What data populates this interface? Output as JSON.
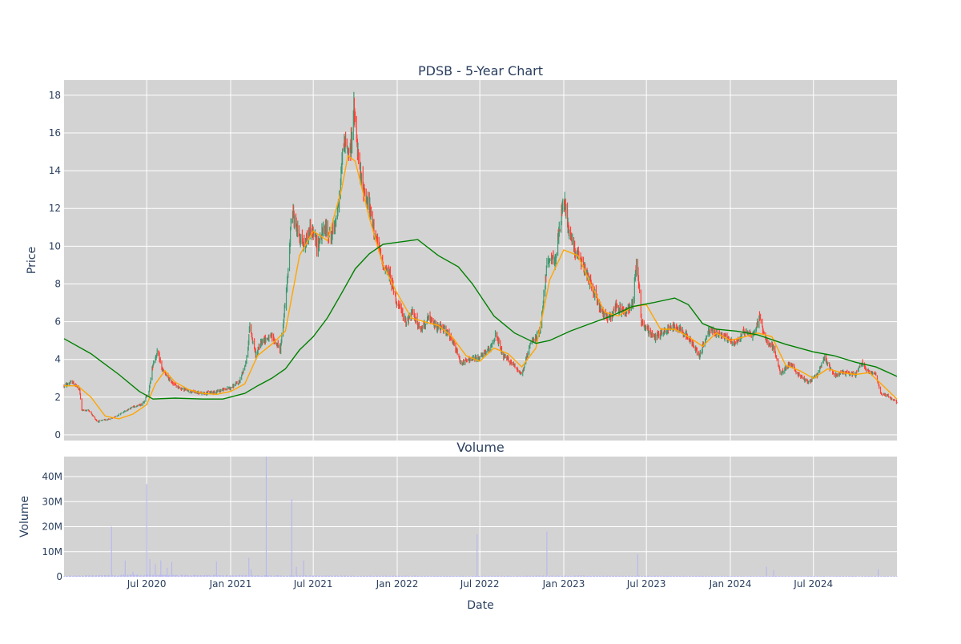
{
  "chart_data": [
    {
      "type": "candlestick",
      "title": "PDSB - 5-Year Chart",
      "ylabel": "Price",
      "ylim": [
        -0.3,
        18.8
      ],
      "yticks": [
        0,
        2,
        4,
        6,
        8,
        10,
        12,
        14,
        16,
        18
      ],
      "xlim": [
        "2020-01-02",
        "2024-12-31"
      ],
      "xticks": [
        "2020-07-01",
        "2021-01-01",
        "2021-07-01",
        "2022-01-01",
        "2022-07-01",
        "2023-01-01",
        "2023-07-01",
        "2024-01-01",
        "2024-07-01"
      ],
      "xtick_labels": [
        "Jul 2020",
        "Jan 2021",
        "Jul 2021",
        "Jan 2022",
        "Jul 2022",
        "Jan 2023",
        "Jul 2023",
        "Jan 2024",
        "Jul 2024"
      ],
      "grid": true,
      "up_color": "#3d9970",
      "down_color": "#ff4136",
      "close_path": [
        [
          "2020-01-02",
          2.6
        ],
        [
          "2020-01-20",
          2.8
        ],
        [
          "2020-02-05",
          2.4
        ],
        [
          "2020-02-10",
          1.3
        ],
        [
          "2020-02-25",
          1.3
        ],
        [
          "2020-03-15",
          0.7
        ],
        [
          "2020-04-01",
          0.8
        ],
        [
          "2020-04-20",
          0.9
        ],
        [
          "2020-05-10",
          1.2
        ],
        [
          "2020-06-01",
          1.5
        ],
        [
          "2020-06-20",
          1.6
        ],
        [
          "2020-07-05",
          2.2
        ],
        [
          "2020-07-15",
          3.8
        ],
        [
          "2020-07-25",
          4.4
        ],
        [
          "2020-08-05",
          3.4
        ],
        [
          "2020-08-20",
          2.9
        ],
        [
          "2020-09-10",
          2.5
        ],
        [
          "2020-10-05",
          2.3
        ],
        [
          "2020-11-01",
          2.2
        ],
        [
          "2020-12-01",
          2.3
        ],
        [
          "2021-01-01",
          2.5
        ],
        [
          "2021-01-20",
          2.8
        ],
        [
          "2021-02-05",
          4.0
        ],
        [
          "2021-02-12",
          5.8
        ],
        [
          "2021-02-25",
          4.2
        ],
        [
          "2021-03-10",
          5.0
        ],
        [
          "2021-04-01",
          5.2
        ],
        [
          "2021-04-20",
          4.5
        ],
        [
          "2021-05-05",
          8.0
        ],
        [
          "2021-05-15",
          12.0
        ],
        [
          "2021-05-25",
          11.0
        ],
        [
          "2021-06-10",
          10.0
        ],
        [
          "2021-06-25",
          11.0
        ],
        [
          "2021-07-10",
          10.0
        ],
        [
          "2021-07-25",
          11.0
        ],
        [
          "2021-08-10",
          10.5
        ],
        [
          "2021-08-25",
          12.0
        ],
        [
          "2021-09-05",
          15.5
        ],
        [
          "2021-09-20",
          15.0
        ],
        [
          "2021-09-28",
          17.2
        ],
        [
          "2021-10-10",
          14.0
        ],
        [
          "2021-10-20",
          13.0
        ],
        [
          "2021-11-01",
          12.0
        ],
        [
          "2021-11-15",
          10.5
        ],
        [
          "2021-12-01",
          9.0
        ],
        [
          "2021-12-15",
          8.5
        ],
        [
          "2022-01-01",
          7.0
        ],
        [
          "2022-01-20",
          6.0
        ],
        [
          "2022-02-05",
          6.5
        ],
        [
          "2022-02-20",
          5.5
        ],
        [
          "2022-03-10",
          6.2
        ],
        [
          "2022-03-25",
          5.8
        ],
        [
          "2022-04-15",
          5.6
        ],
        [
          "2022-05-05",
          4.8
        ],
        [
          "2022-05-20",
          3.8
        ],
        [
          "2022-06-10",
          4.0
        ],
        [
          "2022-07-01",
          4.1
        ],
        [
          "2022-07-20",
          4.5
        ],
        [
          "2022-08-05",
          5.3
        ],
        [
          "2022-08-20",
          4.2
        ],
        [
          "2022-09-10",
          3.8
        ],
        [
          "2022-10-01",
          3.2
        ],
        [
          "2022-10-20",
          4.8
        ],
        [
          "2022-11-10",
          5.5
        ],
        [
          "2022-11-25",
          9.0
        ],
        [
          "2022-12-15",
          9.5
        ],
        [
          "2023-01-01",
          12.5
        ],
        [
          "2023-01-15",
          10.5
        ],
        [
          "2023-02-01",
          9.5
        ],
        [
          "2023-02-20",
          8.5
        ],
        [
          "2023-03-10",
          7.5
        ],
        [
          "2023-03-25",
          6.5
        ],
        [
          "2023-04-10",
          6.2
        ],
        [
          "2023-04-25",
          6.8
        ],
        [
          "2023-05-15",
          6.5
        ],
        [
          "2023-06-01",
          7.0
        ],
        [
          "2023-06-10",
          9.5
        ],
        [
          "2023-06-20",
          6.0
        ],
        [
          "2023-07-05",
          5.5
        ],
        [
          "2023-07-20",
          5.2
        ],
        [
          "2023-08-10",
          5.5
        ],
        [
          "2023-09-01",
          5.8
        ],
        [
          "2023-09-20",
          5.5
        ],
        [
          "2023-10-10",
          4.8
        ],
        [
          "2023-10-25",
          4.2
        ],
        [
          "2023-11-15",
          5.5
        ],
        [
          "2023-12-01",
          5.4
        ],
        [
          "2023-12-20",
          5.2
        ],
        [
          "2024-01-10",
          4.8
        ],
        [
          "2024-02-01",
          5.5
        ],
        [
          "2024-02-20",
          5.3
        ],
        [
          "2024-03-05",
          6.2
        ],
        [
          "2024-03-20",
          5.0
        ],
        [
          "2024-04-05",
          4.6
        ],
        [
          "2024-04-20",
          3.2
        ],
        [
          "2024-05-10",
          3.8
        ],
        [
          "2024-06-01",
          3.1
        ],
        [
          "2024-06-20",
          2.8
        ],
        [
          "2024-07-10",
          3.2
        ],
        [
          "2024-07-25",
          4.1
        ],
        [
          "2024-08-15",
          3.2
        ],
        [
          "2024-09-10",
          3.3
        ],
        [
          "2024-10-01",
          3.2
        ],
        [
          "2024-10-15",
          3.8
        ],
        [
          "2024-11-01",
          3.3
        ],
        [
          "2024-11-15",
          3.2
        ],
        [
          "2024-11-25",
          2.2
        ],
        [
          "2024-12-10",
          2.1
        ],
        [
          "2024-12-31",
          1.7
        ]
      ],
      "series": [
        {
          "name": "short moving average",
          "color": "#ffa500",
          "points": [
            [
              "2020-01-02",
              2.6
            ],
            [
              "2020-02-01",
              2.6
            ],
            [
              "2020-03-01",
              2.0
            ],
            [
              "2020-04-01",
              1.0
            ],
            [
              "2020-05-01",
              0.85
            ],
            [
              "2020-06-01",
              1.1
            ],
            [
              "2020-07-01",
              1.6
            ],
            [
              "2020-07-20",
              2.7
            ],
            [
              "2020-08-10",
              3.4
            ],
            [
              "2020-09-01",
              2.8
            ],
            [
              "2020-10-01",
              2.4
            ],
            [
              "2020-11-01",
              2.2
            ],
            [
              "2020-12-01",
              2.15
            ],
            [
              "2021-01-01",
              2.3
            ],
            [
              "2021-02-01",
              2.7
            ],
            [
              "2021-03-01",
              4.2
            ],
            [
              "2021-04-01",
              4.8
            ],
            [
              "2021-05-01",
              5.5
            ],
            [
              "2021-06-01",
              9.5
            ],
            [
              "2021-07-01",
              10.8
            ],
            [
              "2021-08-01",
              10.3
            ],
            [
              "2021-09-01",
              13.0
            ],
            [
              "2021-09-15",
              14.8
            ],
            [
              "2021-10-01",
              14.5
            ],
            [
              "2021-11-01",
              11.5
            ],
            [
              "2021-12-01",
              9.0
            ],
            [
              "2022-01-01",
              7.5
            ],
            [
              "2022-02-01",
              6.2
            ],
            [
              "2022-03-01",
              6.0
            ],
            [
              "2022-04-01",
              5.8
            ],
            [
              "2022-05-01",
              5.2
            ],
            [
              "2022-06-01",
              4.2
            ],
            [
              "2022-07-01",
              3.9
            ],
            [
              "2022-08-01",
              4.6
            ],
            [
              "2022-09-01",
              4.3
            ],
            [
              "2022-10-01",
              3.6
            ],
            [
              "2022-11-01",
              4.6
            ],
            [
              "2022-12-01",
              8.2
            ],
            [
              "2023-01-01",
              9.8
            ],
            [
              "2023-02-01",
              9.5
            ],
            [
              "2023-03-01",
              8.0
            ],
            [
              "2023-04-01",
              6.5
            ],
            [
              "2023-05-01",
              6.3
            ],
            [
              "2023-06-01",
              6.8
            ],
            [
              "2023-07-01",
              6.9
            ],
            [
              "2023-08-01",
              5.6
            ],
            [
              "2023-09-01",
              5.6
            ],
            [
              "2023-10-01",
              5.2
            ],
            [
              "2023-11-01",
              4.7
            ],
            [
              "2023-12-01",
              5.4
            ],
            [
              "2024-01-01",
              5.0
            ],
            [
              "2024-02-01",
              5.2
            ],
            [
              "2024-03-01",
              5.4
            ],
            [
              "2024-04-01",
              5.2
            ],
            [
              "2024-05-01",
              3.7
            ],
            [
              "2024-06-01",
              3.4
            ],
            [
              "2024-07-01",
              3.0
            ],
            [
              "2024-08-01",
              3.5
            ],
            [
              "2024-09-01",
              3.3
            ],
            [
              "2024-10-01",
              3.2
            ],
            [
              "2024-11-01",
              3.3
            ],
            [
              "2024-12-01",
              2.6
            ],
            [
              "2024-12-31",
              1.9
            ]
          ]
        },
        {
          "name": "long moving average",
          "color": "#008000",
          "points": [
            [
              "2020-01-02",
              5.1
            ],
            [
              "2020-03-01",
              4.3
            ],
            [
              "2020-05-01",
              3.2
            ],
            [
              "2020-06-15",
              2.3
            ],
            [
              "2020-07-15",
              1.9
            ],
            [
              "2020-09-01",
              1.95
            ],
            [
              "2020-11-01",
              1.9
            ],
            [
              "2020-12-15",
              1.9
            ],
            [
              "2021-02-01",
              2.2
            ],
            [
              "2021-03-01",
              2.6
            ],
            [
              "2021-04-01",
              3.0
            ],
            [
              "2021-05-01",
              3.5
            ],
            [
              "2021-06-01",
              4.5
            ],
            [
              "2021-07-01",
              5.2
            ],
            [
              "2021-08-01",
              6.2
            ],
            [
              "2021-09-01",
              7.5
            ],
            [
              "2021-10-01",
              8.8
            ],
            [
              "2021-11-01",
              9.6
            ],
            [
              "2021-12-01",
              10.1
            ],
            [
              "2022-01-01",
              10.2
            ],
            [
              "2022-02-15",
              10.35
            ],
            [
              "2022-04-01",
              9.5
            ],
            [
              "2022-05-15",
              8.9
            ],
            [
              "2022-06-15",
              8.0
            ],
            [
              "2022-08-01",
              6.3
            ],
            [
              "2022-09-15",
              5.4
            ],
            [
              "2022-11-01",
              4.85
            ],
            [
              "2022-12-01",
              5.0
            ],
            [
              "2023-01-15",
              5.5
            ],
            [
              "2023-03-01",
              5.9
            ],
            [
              "2023-04-15",
              6.3
            ],
            [
              "2023-06-01",
              6.8
            ],
            [
              "2023-07-15",
              7.0
            ],
            [
              "2023-09-01",
              7.25
            ],
            [
              "2023-10-01",
              6.9
            ],
            [
              "2023-11-01",
              5.9
            ],
            [
              "2023-12-01",
              5.6
            ],
            [
              "2024-01-15",
              5.5
            ],
            [
              "2024-03-01",
              5.3
            ],
            [
              "2024-05-01",
              4.8
            ],
            [
              "2024-07-01",
              4.4
            ],
            [
              "2024-08-15",
              4.2
            ],
            [
              "2024-10-01",
              3.85
            ],
            [
              "2024-11-15",
              3.6
            ],
            [
              "2024-12-31",
              3.1
            ]
          ]
        }
      ]
    },
    {
      "type": "bar",
      "title": "Volume",
      "xlabel": "Date",
      "ylabel": "Volume",
      "ylim": [
        0,
        48000000
      ],
      "yticks": [
        0,
        10000000,
        20000000,
        30000000,
        40000000
      ],
      "ytick_labels": [
        "0",
        "10M",
        "20M",
        "30M",
        "40M"
      ],
      "grid": true,
      "bar_color": "#b6b6f2",
      "baseline": [
        [
          "2020-01-02",
          300000
        ],
        [
          "2020-06-01",
          600000
        ],
        [
          "2021-01-01",
          500000
        ],
        [
          "2021-06-01",
          400000
        ],
        [
          "2022-01-01",
          300000
        ],
        [
          "2022-06-01",
          250000
        ],
        [
          "2023-01-01",
          350000
        ],
        [
          "2023-06-01",
          300000
        ],
        [
          "2024-01-01",
          250000
        ],
        [
          "2024-06-01",
          200000
        ],
        [
          "2024-12-31",
          200000
        ]
      ],
      "spikes": [
        [
          "2020-04-15",
          20000000
        ],
        [
          "2020-05-15",
          6500000
        ],
        [
          "2020-06-01",
          2000000
        ],
        [
          "2020-07-01",
          37000000
        ],
        [
          "2020-07-08",
          7000000
        ],
        [
          "2020-07-20",
          5000000
        ],
        [
          "2020-08-01",
          6500000
        ],
        [
          "2020-08-15",
          3500000
        ],
        [
          "2020-08-25",
          6000000
        ],
        [
          "2020-12-01",
          6000000
        ],
        [
          "2021-02-10",
          7500000
        ],
        [
          "2021-02-15",
          3000000
        ],
        [
          "2021-03-20",
          48000000
        ],
        [
          "2021-05-15",
          31000000
        ],
        [
          "2021-05-25",
          4000000
        ],
        [
          "2021-06-10",
          6500000
        ],
        [
          "2022-06-25",
          17000000
        ],
        [
          "2022-11-25",
          18000000
        ],
        [
          "2023-06-12",
          9000000
        ],
        [
          "2024-03-20",
          4000000
        ],
        [
          "2024-04-05",
          2500000
        ],
        [
          "2024-11-20",
          3000000
        ]
      ]
    }
  ]
}
